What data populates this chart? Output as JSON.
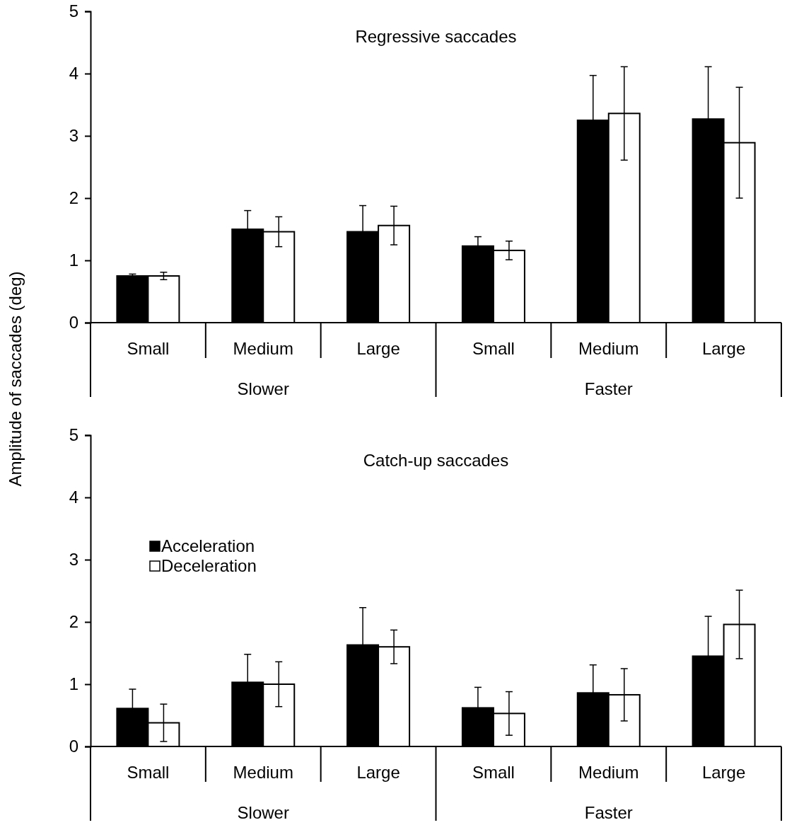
{
  "chart_data": [
    {
      "type": "bar",
      "title": "Regressive saccades",
      "ylabel": "Amplitude of saccades (deg)",
      "categories": [
        "Small",
        "Medium",
        "Large",
        "Small",
        "Medium",
        "Large"
      ],
      "annotations": [
        "Slower",
        "Faster"
      ],
      "ylim": [
        0,
        5
      ],
      "yticks": [
        0,
        1,
        2,
        3,
        4,
        5
      ],
      "series": [
        {
          "color": "#000000",
          "values": [
            0.75,
            1.5,
            1.46,
            1.23,
            3.25,
            3.27
          ],
          "errors": [
            0.03,
            0.3,
            0.42,
            0.15,
            0.72,
            0.84
          ]
        },
        {
          "color": "#ffffff",
          "values": [
            0.75,
            1.46,
            1.56,
            1.16,
            3.36,
            2.89
          ],
          "errors": [
            0.06,
            0.24,
            0.31,
            0.15,
            0.75,
            0.89
          ]
        }
      ]
    },
    {
      "type": "bar",
      "title": "Catch-up saccades",
      "categories": [
        "Small",
        "Medium",
        "Large",
        "Small",
        "Medium",
        "Large"
      ],
      "annotations": [
        "Slower",
        "Faster"
      ],
      "ylim": [
        0,
        5
      ],
      "yticks": [
        0,
        1,
        2,
        3,
        4,
        5
      ],
      "legend": "top left",
      "series": [
        {
          "name": "Acceleration",
          "color": "#000000",
          "values": [
            0.61,
            1.03,
            1.63,
            0.62,
            0.86,
            1.45
          ],
          "errors": [
            0.31,
            0.45,
            0.6,
            0.33,
            0.45,
            0.64
          ]
        },
        {
          "name": "Deceleration",
          "color": "#ffffff",
          "values": [
            0.38,
            1.0,
            1.6,
            0.53,
            0.83,
            1.96
          ],
          "errors": [
            0.3,
            0.36,
            0.27,
            0.35,
            0.42,
            0.55
          ]
        }
      ]
    }
  ]
}
